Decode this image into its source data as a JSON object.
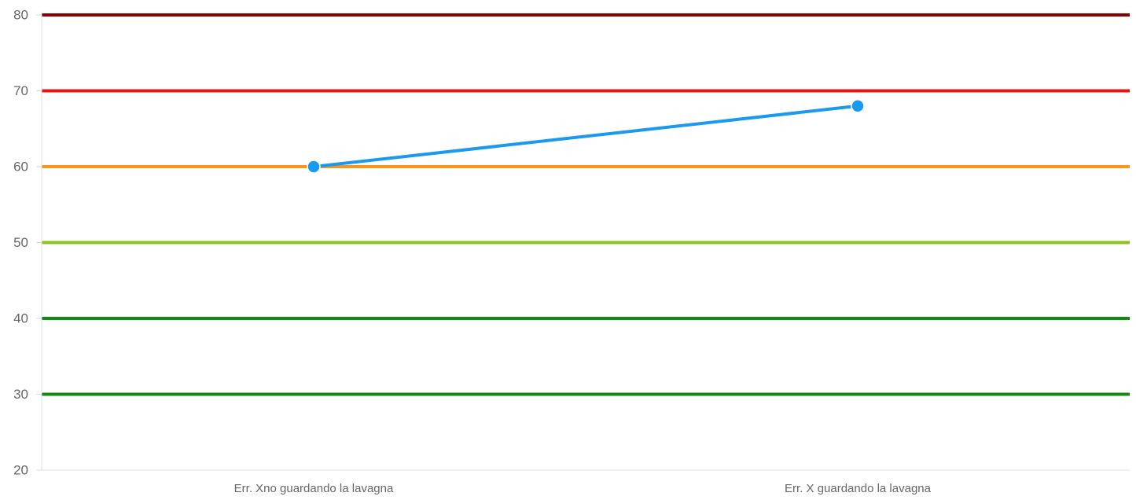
{
  "chart_data": {
    "type": "line",
    "categories": [
      "Err. Xno guardando la lavagna",
      "Err. X guardando la lavagna"
    ],
    "series": [
      {
        "values": [
          60,
          68
        ],
        "color": "#1a9aef"
      }
    ],
    "reference_lines": [
      {
        "value": 80,
        "color": "#8b0000"
      },
      {
        "value": 70,
        "color": "#ee1111"
      },
      {
        "value": 60,
        "color": "#f5961e"
      },
      {
        "value": 50,
        "color": "#8cc21c"
      },
      {
        "value": 40,
        "color": "#0f8c0f"
      },
      {
        "value": 30,
        "color": "#0f8c0f"
      }
    ],
    "ylim": [
      20,
      80
    ],
    "yticks": [
      "20",
      "30",
      "40",
      "50",
      "60",
      "70",
      "80"
    ],
    "title": "",
    "xlabel": "",
    "ylabel": "",
    "grid": false,
    "legend": "none"
  }
}
